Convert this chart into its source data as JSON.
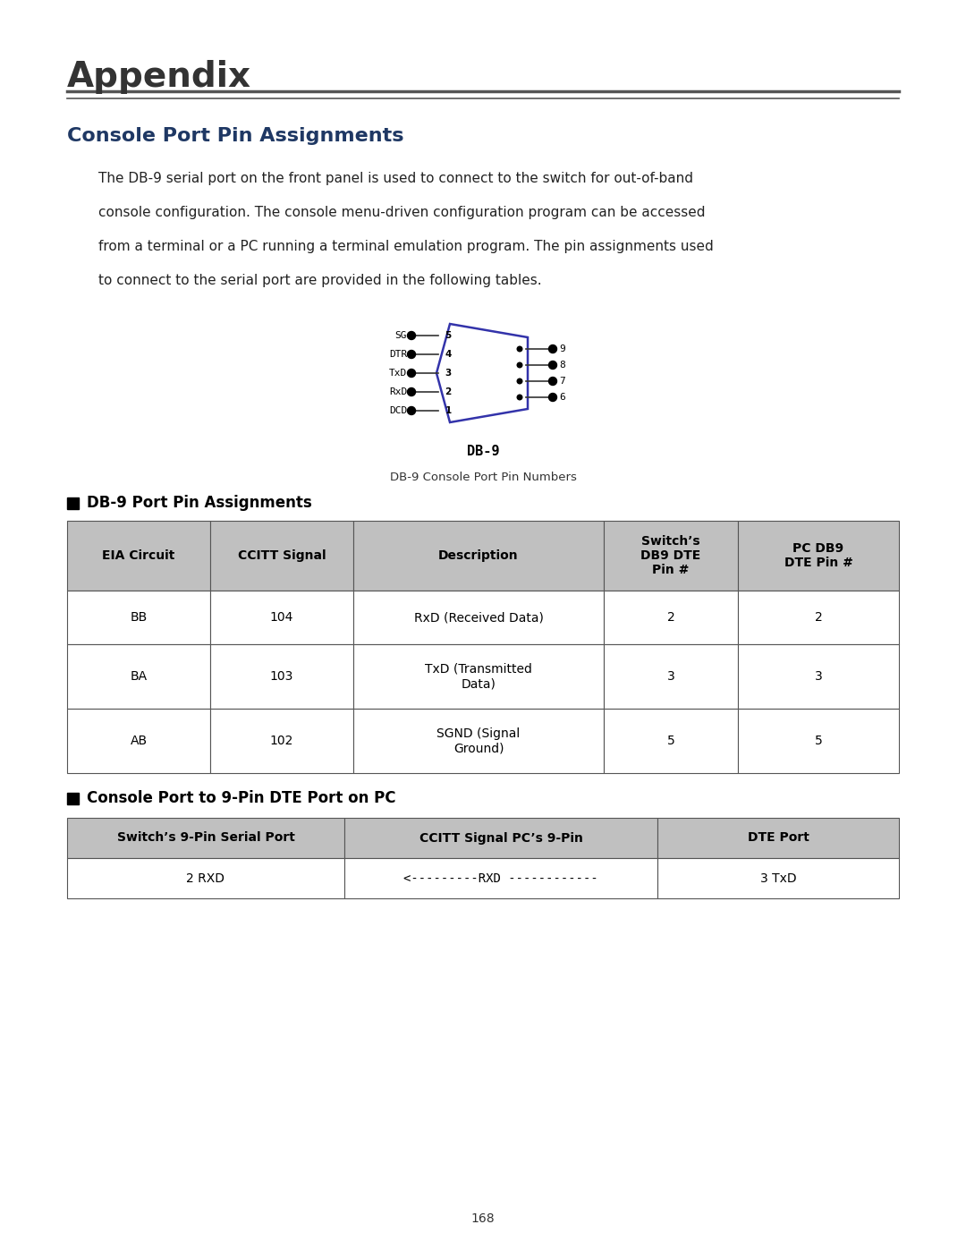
{
  "page_width": 10.8,
  "page_height": 13.97,
  "bg_color": "#ffffff",
  "title": "Appendix",
  "title_fontsize": 28,
  "section_title": "Console Port Pin Assignments",
  "section_title_fontsize": 16,
  "section_title_color": "#1F3864",
  "body_text": "The DB-9 serial port on the front panel is used to connect to the switch for out-of-band\nconsole configuration. The console menu-driven configuration program can be accessed\nfrom a terminal or a PC running a terminal emulation program. The pin assignments used\nto connect to the serial port are provided in the following tables.",
  "body_fontsize": 11,
  "diagram_caption": "DB-9 Console Port Pin Numbers",
  "db9_labels_left": [
    "SG",
    "DTR",
    "TxD",
    "RxD",
    "DCD"
  ],
  "db9_pins_left": [
    "5",
    "4",
    "3",
    "2",
    "1"
  ],
  "db9_pins_right": [
    "9",
    "8",
    "7",
    "6"
  ],
  "db9_label": "DB-9",
  "subsection1_title": "DB-9 Port Pin Assignments",
  "table1_header": [
    "EIA Circuit",
    "CCITT Signal",
    "Description",
    "Switch’s\nDB9 DTE\nPin #",
    "PC DB9\nDTE Pin #"
  ],
  "table1_rows": [
    [
      "BB",
      "104",
      "RxD (Received Data)",
      "2",
      "2"
    ],
    [
      "BA",
      "103",
      "TxD (Transmitted\nData)",
      "3",
      "3"
    ],
    [
      "AB",
      "102",
      "SGND (Signal\nGround)",
      "5",
      "5"
    ]
  ],
  "subsection2_title": "Console Port to 9-Pin DTE Port on PC",
  "table2_header": [
    "Switch’s 9-Pin Serial Port",
    "CCITT Signal PC’s 9-Pin",
    "DTE Port"
  ],
  "table2_rows": [
    [
      "2 RXD",
      "<---------RXD ------------",
      "3 TxD"
    ]
  ],
  "page_number": "168",
  "header_bg_color": "#c0c0c0",
  "table_border_color": "#555555",
  "table_text_color": "#000000",
  "header_text_color": "#000000",
  "double_rule_color": "#555555"
}
